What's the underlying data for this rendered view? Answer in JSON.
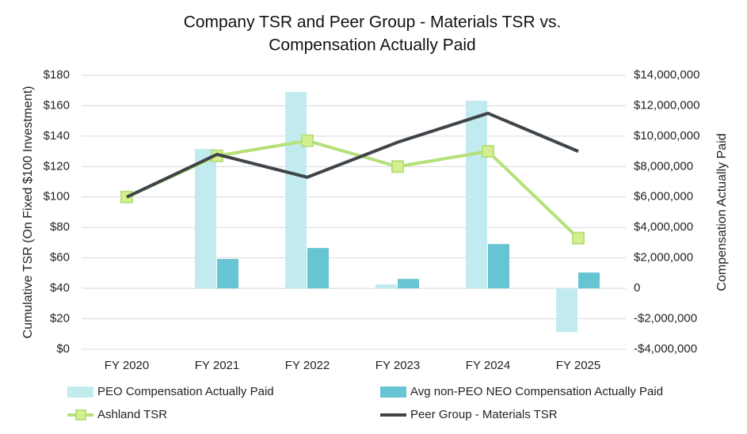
{
  "chart_data": {
    "type": "combo",
    "title": [
      "Company TSR and Peer Group - Materials TSR vs.",
      "Compensation Actually Paid"
    ],
    "y_label": "Cumulative TSR (On Fixed $100 Investment)",
    "y2_label": "Compensation Actually Paid",
    "categories": [
      "FY 2020",
      "FY 2021",
      "FY 2022",
      "FY 2023",
      "FY 2024",
      "FY 2025"
    ],
    "ylim": [
      0,
      180
    ],
    "yticks": [
      {
        "value": 0,
        "label": "$0"
      },
      {
        "value": 20,
        "label": "$20"
      },
      {
        "value": 40,
        "label": "$40"
      },
      {
        "value": 60,
        "label": "$60"
      },
      {
        "value": 80,
        "label": "$80"
      },
      {
        "value": 100,
        "label": "$100"
      },
      {
        "value": 120,
        "label": "$120"
      },
      {
        "value": 140,
        "label": "$140"
      },
      {
        "value": 160,
        "label": "$160"
      },
      {
        "value": 180,
        "label": "$180"
      }
    ],
    "y2lim": [
      -4000000,
      14000000
    ],
    "y2ticks": [
      {
        "value": -4000000,
        "label": "-$4,000,000"
      },
      {
        "value": -2000000,
        "label": "-$2,000,000"
      },
      0,
      {
        "value": 2000000,
        "label": "$2,000,000"
      },
      {
        "value": 4000000,
        "label": "$4,000,000"
      },
      {
        "value": 6000000,
        "label": "$6,000,000"
      },
      {
        "value": 8000000,
        "label": "$8,000,000"
      },
      {
        "value": 10000000,
        "label": "$10,000,000"
      },
      {
        "value": 12000000,
        "label": "$12,000,000"
      },
      {
        "value": 14000000,
        "label": "$14,000,000"
      }
    ],
    "grid": true,
    "legend": "bottom",
    "series": [
      {
        "name": "PEO Compensation Actually Paid",
        "type": "bar",
        "axis": "y2",
        "color": "#c2ebf0",
        "values": [
          null,
          9160000,
          12900000,
          260000,
          12330000,
          -2860000
        ]
      },
      {
        "name": "Avg non-PEO NEO Compensation Actually Paid",
        "type": "bar",
        "axis": "y2",
        "color": "#67c4d3",
        "values": [
          null,
          1930000,
          2650000,
          620000,
          2910000,
          1040000
        ]
      },
      {
        "name": "Ashland TSR",
        "type": "line",
        "marker": "square",
        "color": "#b5e07a",
        "values": [
          100,
          127,
          137,
          120,
          130,
          73
        ]
      },
      {
        "name": "Peer Group - Materials TSR",
        "type": "line",
        "color": "#3f4449",
        "values": [
          100,
          128,
          113,
          136,
          155,
          130
        ]
      }
    ]
  }
}
